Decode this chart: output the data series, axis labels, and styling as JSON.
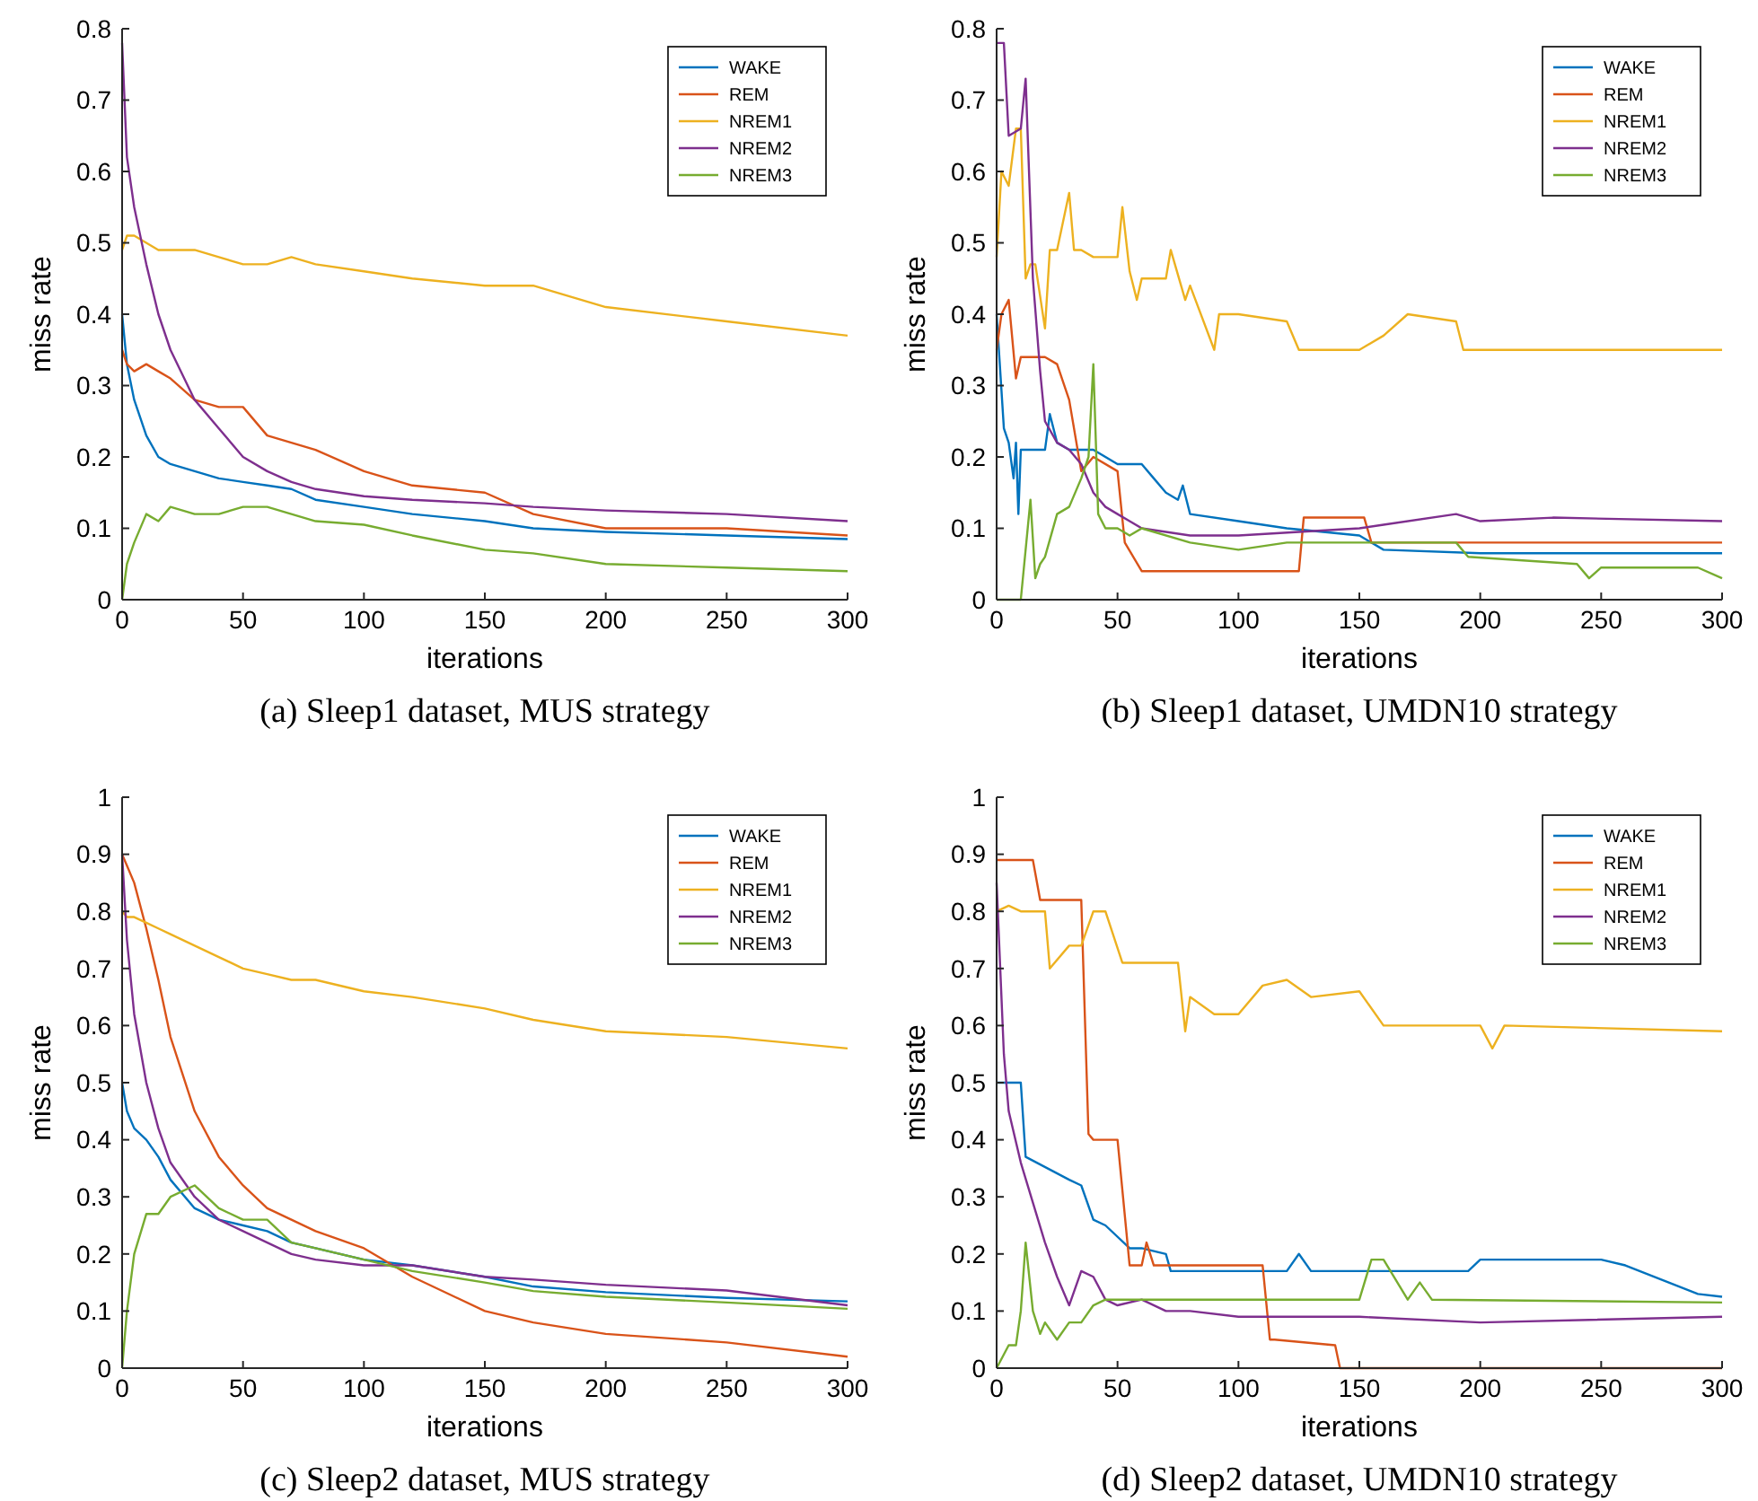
{
  "chart_data": [
    {
      "type": "line",
      "title": "(a) Sleep1 dataset, MUS strategy",
      "xlabel": "iterations",
      "ylabel": "miss rate",
      "xlim": [
        0,
        300
      ],
      "xticks": [
        0,
        50,
        100,
        150,
        200,
        250,
        300
      ],
      "ylim": [
        0,
        0.8
      ],
      "yticks": [
        0,
        0.1,
        0.2,
        0.3,
        0.4,
        0.5,
        0.6,
        0.7,
        0.8
      ],
      "legend": "top right",
      "x": [
        0,
        2,
        5,
        10,
        15,
        20,
        30,
        40,
        50,
        60,
        70,
        80,
        100,
        120,
        150,
        170,
        200,
        250,
        300
      ],
      "series": [
        {
          "name": "WAKE",
          "color": "#0072bd",
          "values": [
            0.4,
            0.33,
            0.28,
            0.23,
            0.2,
            0.19,
            0.18,
            0.17,
            0.165,
            0.16,
            0.155,
            0.14,
            0.13,
            0.12,
            0.11,
            0.1,
            0.095,
            0.09,
            0.085
          ]
        },
        {
          "name": "REM",
          "color": "#d95319",
          "values": [
            0.35,
            0.33,
            0.32,
            0.33,
            0.32,
            0.31,
            0.28,
            0.27,
            0.27,
            0.23,
            0.22,
            0.21,
            0.18,
            0.16,
            0.15,
            0.12,
            0.1,
            0.1,
            0.09
          ]
        },
        {
          "name": "NREM1",
          "color": "#edb120",
          "values": [
            0.49,
            0.51,
            0.51,
            0.5,
            0.49,
            0.49,
            0.49,
            0.48,
            0.47,
            0.47,
            0.48,
            0.47,
            0.46,
            0.45,
            0.44,
            0.44,
            0.41,
            0.39,
            0.37
          ]
        },
        {
          "name": "NREM2",
          "color": "#7e2f8e",
          "values": [
            0.78,
            0.62,
            0.55,
            0.47,
            0.4,
            0.35,
            0.28,
            0.24,
            0.2,
            0.18,
            0.165,
            0.155,
            0.145,
            0.14,
            0.135,
            0.13,
            0.125,
            0.12,
            0.11
          ]
        },
        {
          "name": "NREM3",
          "color": "#77ac30",
          "values": [
            0.0,
            0.05,
            0.08,
            0.12,
            0.11,
            0.13,
            0.12,
            0.12,
            0.13,
            0.13,
            0.12,
            0.11,
            0.105,
            0.09,
            0.07,
            0.065,
            0.05,
            0.045,
            0.04
          ]
        }
      ]
    },
    {
      "type": "line",
      "title": "(b) Sleep1 dataset, UMDN10 strategy",
      "xlabel": "iterations",
      "ylabel": "miss rate",
      "xlim": [
        0,
        300
      ],
      "xticks": [
        0,
        50,
        100,
        150,
        200,
        250,
        300
      ],
      "ylim": [
        0,
        0.8
      ],
      "yticks": [
        0,
        0.1,
        0.2,
        0.3,
        0.4,
        0.5,
        0.6,
        0.7,
        0.8
      ],
      "legend": "top right",
      "series": [
        {
          "name": "WAKE",
          "color": "#0072bd",
          "x": [
            0,
            3,
            5,
            7,
            8,
            9,
            10,
            20,
            22,
            25,
            30,
            40,
            50,
            60,
            65,
            70,
            75,
            77,
            80,
            100,
            120,
            150,
            160,
            200,
            300
          ],
          "values": [
            0.4,
            0.24,
            0.22,
            0.17,
            0.22,
            0.12,
            0.21,
            0.21,
            0.26,
            0.22,
            0.21,
            0.21,
            0.19,
            0.19,
            0.17,
            0.15,
            0.14,
            0.16,
            0.12,
            0.11,
            0.1,
            0.09,
            0.07,
            0.065,
            0.065
          ]
        },
        {
          "name": "REM",
          "color": "#d95319",
          "x": [
            0,
            2,
            5,
            8,
            10,
            12,
            15,
            20,
            25,
            30,
            35,
            40,
            50,
            53,
            60,
            100,
            125,
            127,
            152,
            155,
            300
          ],
          "values": [
            0.35,
            0.4,
            0.42,
            0.31,
            0.34,
            0.34,
            0.34,
            0.34,
            0.33,
            0.28,
            0.18,
            0.2,
            0.18,
            0.08,
            0.04,
            0.04,
            0.04,
            0.115,
            0.115,
            0.08,
            0.08
          ]
        },
        {
          "name": "NREM1",
          "color": "#edb120",
          "x": [
            0,
            2,
            5,
            8,
            10,
            12,
            14,
            16,
            20,
            22,
            25,
            30,
            32,
            35,
            40,
            50,
            52,
            55,
            58,
            60,
            70,
            72,
            78,
            80,
            90,
            92,
            100,
            120,
            125,
            150,
            160,
            170,
            190,
            193,
            300
          ],
          "values": [
            0.48,
            0.6,
            0.58,
            0.66,
            0.66,
            0.45,
            0.47,
            0.47,
            0.38,
            0.49,
            0.49,
            0.57,
            0.49,
            0.49,
            0.48,
            0.48,
            0.55,
            0.46,
            0.42,
            0.45,
            0.45,
            0.49,
            0.42,
            0.44,
            0.35,
            0.4,
            0.4,
            0.39,
            0.35,
            0.35,
            0.37,
            0.4,
            0.39,
            0.35,
            0.35
          ]
        },
        {
          "name": "NREM2",
          "color": "#7e2f8e",
          "x": [
            0,
            3,
            5,
            10,
            12,
            15,
            18,
            20,
            25,
            30,
            35,
            40,
            45,
            50,
            55,
            60,
            80,
            100,
            150,
            160,
            190,
            200,
            230,
            300
          ],
          "values": [
            0.78,
            0.78,
            0.65,
            0.66,
            0.73,
            0.45,
            0.32,
            0.25,
            0.22,
            0.21,
            0.19,
            0.15,
            0.13,
            0.12,
            0.11,
            0.1,
            0.09,
            0.09,
            0.1,
            0.105,
            0.12,
            0.11,
            0.115,
            0.11
          ]
        },
        {
          "name": "NREM3",
          "color": "#77ac30",
          "x": [
            0,
            10,
            14,
            16,
            18,
            20,
            25,
            30,
            35,
            38,
            40,
            42,
            45,
            50,
            55,
            60,
            80,
            100,
            120,
            150,
            190,
            195,
            240,
            245,
            250,
            290,
            300
          ],
          "values": [
            0,
            0,
            0.14,
            0.03,
            0.05,
            0.06,
            0.12,
            0.13,
            0.17,
            0.2,
            0.33,
            0.12,
            0.1,
            0.1,
            0.09,
            0.1,
            0.08,
            0.07,
            0.08,
            0.08,
            0.08,
            0.06,
            0.05,
            0.03,
            0.045,
            0.045,
            0.03
          ]
        }
      ]
    },
    {
      "type": "line",
      "title": "(c) Sleep2 dataset, MUS strategy",
      "xlabel": "iterations",
      "ylabel": "miss rate",
      "xlim": [
        0,
        300
      ],
      "xticks": [
        0,
        50,
        100,
        150,
        200,
        250,
        300
      ],
      "ylim": [
        0,
        1
      ],
      "yticks": [
        0,
        0.1,
        0.2,
        0.3,
        0.4,
        0.5,
        0.6,
        0.7,
        0.8,
        0.9,
        1
      ],
      "legend": "top right",
      "x": [
        0,
        2,
        5,
        10,
        15,
        20,
        30,
        40,
        50,
        60,
        70,
        80,
        100,
        120,
        150,
        170,
        200,
        250,
        300
      ],
      "series": [
        {
          "name": "WAKE",
          "color": "#0072bd",
          "values": [
            0.5,
            0.45,
            0.42,
            0.4,
            0.37,
            0.33,
            0.28,
            0.26,
            0.25,
            0.24,
            0.22,
            0.21,
            0.19,
            0.18,
            0.16,
            0.143,
            0.133,
            0.123,
            0.117
          ]
        },
        {
          "name": "REM",
          "color": "#d95319",
          "values": [
            0.9,
            0.88,
            0.85,
            0.77,
            0.68,
            0.58,
            0.45,
            0.37,
            0.32,
            0.28,
            0.26,
            0.24,
            0.21,
            0.16,
            0.1,
            0.08,
            0.06,
            0.045,
            0.02
          ]
        },
        {
          "name": "NREM1",
          "color": "#edb120",
          "values": [
            0.8,
            0.79,
            0.79,
            0.78,
            0.77,
            0.76,
            0.74,
            0.72,
            0.7,
            0.69,
            0.68,
            0.68,
            0.66,
            0.65,
            0.63,
            0.61,
            0.59,
            0.58,
            0.56
          ]
        },
        {
          "name": "NREM2",
          "color": "#7e2f8e",
          "values": [
            0.9,
            0.75,
            0.62,
            0.5,
            0.42,
            0.36,
            0.3,
            0.26,
            0.24,
            0.22,
            0.2,
            0.19,
            0.18,
            0.18,
            0.16,
            0.155,
            0.146,
            0.136,
            0.11
          ]
        },
        {
          "name": "NREM3",
          "color": "#77ac30",
          "values": [
            0,
            0.1,
            0.2,
            0.27,
            0.27,
            0.3,
            0.32,
            0.28,
            0.26,
            0.26,
            0.22,
            0.21,
            0.19,
            0.17,
            0.15,
            0.135,
            0.125,
            0.115,
            0.104
          ]
        }
      ]
    },
    {
      "type": "line",
      "title": "(d) Sleep2 dataset, UMDN10 strategy",
      "xlabel": "iterations",
      "ylabel": "miss rate",
      "xlim": [
        0,
        300
      ],
      "xticks": [
        0,
        50,
        100,
        150,
        200,
        250,
        300
      ],
      "ylim": [
        0,
        1
      ],
      "yticks": [
        0,
        0.1,
        0.2,
        0.3,
        0.4,
        0.5,
        0.6,
        0.7,
        0.8,
        0.9,
        1
      ],
      "legend": "top right",
      "series": [
        {
          "name": "WAKE",
          "color": "#0072bd",
          "x": [
            0,
            10,
            12,
            30,
            35,
            40,
            45,
            55,
            60,
            70,
            72,
            120,
            125,
            130,
            195,
            200,
            250,
            260,
            290,
            300
          ],
          "values": [
            0.5,
            0.5,
            0.37,
            0.33,
            0.32,
            0.26,
            0.25,
            0.21,
            0.21,
            0.2,
            0.17,
            0.17,
            0.2,
            0.17,
            0.17,
            0.19,
            0.19,
            0.18,
            0.13,
            0.125
          ]
        },
        {
          "name": "REM",
          "color": "#d95319",
          "x": [
            0,
            15,
            18,
            35,
            38,
            40,
            50,
            55,
            60,
            62,
            65,
            110,
            113,
            115,
            140,
            142,
            300
          ],
          "values": [
            0.89,
            0.89,
            0.82,
            0.82,
            0.41,
            0.4,
            0.4,
            0.18,
            0.18,
            0.22,
            0.18,
            0.18,
            0.05,
            0.05,
            0.04,
            0,
            0
          ]
        },
        {
          "name": "NREM1",
          "color": "#edb120",
          "x": [
            0,
            5,
            10,
            20,
            22,
            30,
            35,
            40,
            45,
            52,
            60,
            75,
            78,
            80,
            90,
            100,
            110,
            120,
            130,
            150,
            160,
            200,
            205,
            210,
            300
          ],
          "values": [
            0.8,
            0.81,
            0.8,
            0.8,
            0.7,
            0.74,
            0.74,
            0.8,
            0.8,
            0.71,
            0.71,
            0.71,
            0.59,
            0.65,
            0.62,
            0.62,
            0.67,
            0.68,
            0.65,
            0.66,
            0.6,
            0.6,
            0.56,
            0.6,
            0.59
          ]
        },
        {
          "name": "NREM2",
          "color": "#7e2f8e",
          "x": [
            0,
            3,
            5,
            10,
            15,
            20,
            25,
            30,
            35,
            40,
            45,
            50,
            60,
            70,
            80,
            100,
            150,
            200,
            300
          ],
          "values": [
            0.85,
            0.55,
            0.45,
            0.36,
            0.29,
            0.22,
            0.16,
            0.11,
            0.17,
            0.16,
            0.12,
            0.11,
            0.12,
            0.1,
            0.1,
            0.09,
            0.09,
            0.08,
            0.09
          ]
        },
        {
          "name": "NREM3",
          "color": "#77ac30",
          "x": [
            0,
            5,
            8,
            10,
            12,
            15,
            18,
            20,
            25,
            30,
            35,
            40,
            45,
            50,
            100,
            150,
            155,
            160,
            170,
            175,
            180,
            300
          ],
          "values": [
            0,
            0.04,
            0.04,
            0.1,
            0.22,
            0.1,
            0.06,
            0.08,
            0.05,
            0.08,
            0.08,
            0.11,
            0.12,
            0.12,
            0.12,
            0.12,
            0.19,
            0.19,
            0.12,
            0.15,
            0.12,
            0.115
          ]
        }
      ]
    }
  ]
}
